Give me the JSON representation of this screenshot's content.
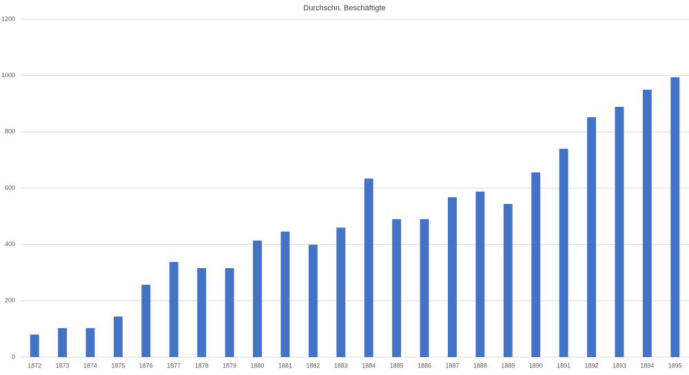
{
  "chart_data": {
    "type": "bar",
    "title": "Durchschn. Beschäftigte",
    "categories": [
      "1872",
      "1873",
      "1874",
      "1875",
      "1876",
      "1877",
      "1878",
      "1879",
      "1880",
      "1881",
      "1882",
      "1883",
      "1884",
      "1885",
      "1886",
      "1887",
      "1888",
      "1889",
      "1890",
      "1891",
      "1892",
      "1893",
      "1894",
      "1895"
    ],
    "values": [
      80,
      103,
      103,
      144,
      257,
      338,
      316,
      316,
      414,
      446,
      399,
      460,
      634,
      490,
      490,
      568,
      588,
      544,
      656,
      740,
      852,
      889,
      950,
      994
    ],
    "color": "#4472c4",
    "ylim": [
      0,
      1200
    ],
    "yticks": [
      0,
      200,
      400,
      600,
      800,
      1000,
      1200
    ],
    "grid": true
  }
}
